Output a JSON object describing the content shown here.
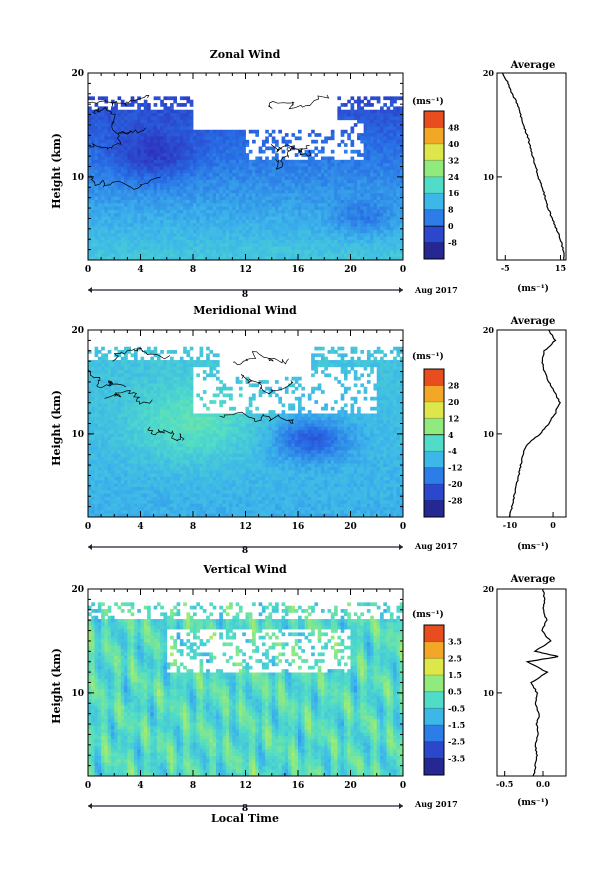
{
  "chart_data": [
    {
      "type": "heatmap",
      "title": "Zonal Wind",
      "ylabel": "Height (km)",
      "xlabel": "",
      "xlim": [
        0,
        24
      ],
      "ylim": [
        2,
        20
      ],
      "x_ticks": [
        "0",
        "4",
        "8",
        "12",
        "16",
        "20",
        "0"
      ],
      "y_ticks": [
        "20",
        "10"
      ],
      "date_axis": {
        "day": "8",
        "label": "Aug 2017"
      },
      "colorbar": {
        "unit": "(ms⁻¹)",
        "levels": [
          "48",
          "40",
          "32",
          "24",
          "16",
          "8",
          "0",
          "-8"
        ],
        "range": [
          -12,
          52
        ]
      },
      "profile": {
        "title": "Average",
        "x_ticks": [
          "-5",
          "15"
        ],
        "xlim": [
          -8,
          17
        ],
        "xlabel": "(ms⁻¹)",
        "y_ticks": [
          "20",
          "10"
        ],
        "points": [
          [
            16.5,
            2
          ],
          [
            16,
            3
          ],
          [
            15,
            4
          ],
          [
            13.5,
            5
          ],
          [
            12,
            6
          ],
          [
            10.5,
            7
          ],
          [
            9.5,
            8
          ],
          [
            8.5,
            9
          ],
          [
            7,
            10
          ],
          [
            6,
            11
          ],
          [
            5,
            12
          ],
          [
            4,
            13
          ],
          [
            3,
            14
          ],
          [
            1.5,
            15
          ],
          [
            0.5,
            16
          ],
          [
            -0.5,
            17
          ],
          [
            -2.5,
            18
          ],
          [
            -4,
            19
          ],
          [
            -6,
            20
          ]
        ]
      }
    },
    {
      "type": "heatmap",
      "title": "Meridional Wind",
      "ylabel": "Height (km)",
      "xlabel": "",
      "xlim": [
        0,
        24
      ],
      "ylim": [
        2,
        20
      ],
      "x_ticks": [
        "0",
        "4",
        "8",
        "12",
        "16",
        "20",
        "0"
      ],
      "y_ticks": [
        "20",
        "10"
      ],
      "date_axis": {
        "day": "8",
        "label": "Aug 2017"
      },
      "colorbar": {
        "unit": "(ms⁻¹)",
        "levels": [
          "28",
          "20",
          "12",
          "4",
          "-4",
          "-12",
          "-20",
          "-28"
        ],
        "range": [
          -32,
          32
        ]
      },
      "profile": {
        "title": "Average",
        "x_ticks": [
          "-10",
          "0"
        ],
        "xlim": [
          -13,
          3
        ],
        "xlabel": "(ms⁻¹)",
        "y_ticks": [
          "20",
          "10"
        ],
        "points": [
          [
            -10,
            2
          ],
          [
            -9.5,
            3
          ],
          [
            -9,
            4
          ],
          [
            -8.5,
            5
          ],
          [
            -8,
            6
          ],
          [
            -7.5,
            7
          ],
          [
            -7,
            8
          ],
          [
            -6,
            9
          ],
          [
            -3,
            10
          ],
          [
            -1,
            11
          ],
          [
            0.5,
            12
          ],
          [
            1.5,
            13
          ],
          [
            0.5,
            14
          ],
          [
            -1,
            15
          ],
          [
            -2,
            16
          ],
          [
            -2.5,
            17
          ],
          [
            -2,
            18
          ],
          [
            0.5,
            19
          ],
          [
            -1,
            20
          ]
        ]
      }
    },
    {
      "type": "heatmap",
      "title": "Vertical Wind",
      "ylabel": "Height (km)",
      "xlabel": "Local Time",
      "xlim": [
        0,
        24
      ],
      "ylim": [
        2,
        20
      ],
      "x_ticks": [
        "0",
        "4",
        "8",
        "12",
        "16",
        "20",
        "0"
      ],
      "y_ticks": [
        "20",
        "10"
      ],
      "date_axis": {
        "day": "8",
        "label": "Aug 2017"
      },
      "colorbar": {
        "unit": "(ms⁻¹)",
        "levels": [
          "3.5",
          "2.5",
          "1.5",
          "0.5",
          "-0.5",
          "-1.5",
          "-2.5",
          "-3.5"
        ],
        "range": [
          -4,
          4
        ]
      },
      "profile": {
        "title": "Average",
        "x_ticks": [
          "-0.5",
          "0.0"
        ],
        "xlim": [
          -0.6,
          0.3
        ],
        "xlabel": "(ms⁻¹)",
        "y_ticks": [
          "20",
          "10"
        ],
        "points": [
          [
            -0.12,
            2
          ],
          [
            -0.1,
            3
          ],
          [
            -0.08,
            4
          ],
          [
            -0.1,
            5
          ],
          [
            -0.06,
            6
          ],
          [
            -0.08,
            7
          ],
          [
            -0.05,
            8
          ],
          [
            -0.1,
            9
          ],
          [
            -0.08,
            10
          ],
          [
            -0.15,
            11
          ],
          [
            0.05,
            12
          ],
          [
            -0.2,
            13
          ],
          [
            0.2,
            13.5
          ],
          [
            -0.1,
            14
          ],
          [
            0.1,
            15
          ],
          [
            -0.02,
            16
          ],
          [
            0.05,
            17
          ],
          [
            0.0,
            18
          ],
          [
            0.02,
            19
          ],
          [
            0.0,
            20
          ]
        ]
      }
    }
  ]
}
